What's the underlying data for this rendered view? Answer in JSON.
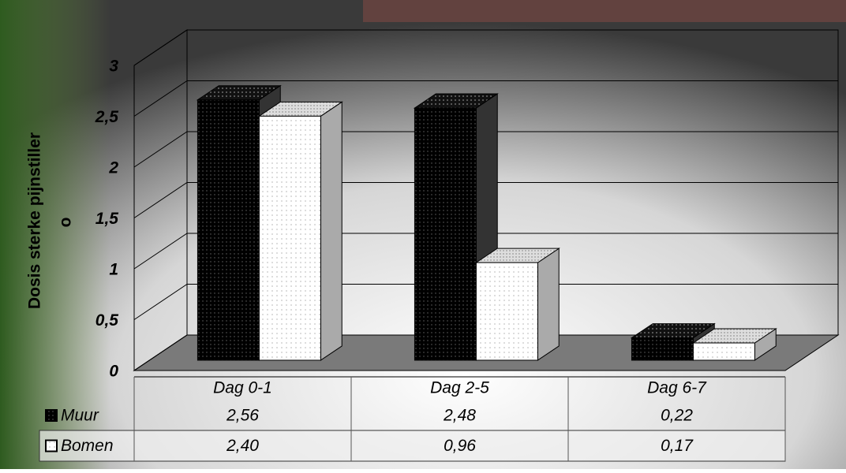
{
  "chart_data": {
    "type": "bar3d",
    "y_label": [
      "Dosis sterke pijnstiller",
      "o"
    ],
    "categories": [
      "Dag 0-1",
      "Dag 2-5",
      "Dag 6-7"
    ],
    "series": [
      {
        "name": "Muur",
        "color": "#000000",
        "values": [
          2.56,
          2.48,
          0.22
        ],
        "value_labels": [
          "2,56",
          "2,48",
          "0,22"
        ]
      },
      {
        "name": "Bomen",
        "color": "#ffffff",
        "values": [
          2.4,
          0.96,
          0.17
        ],
        "value_labels": [
          "2,40",
          "0,96",
          "0,17"
        ]
      }
    ],
    "ylim": [
      0,
      3
    ],
    "yticks": [
      0,
      {
        "value": 0.5,
        "label": "0,5"
      },
      1,
      {
        "value": 1.5,
        "label": "1,5"
      },
      2,
      {
        "value": 2.5,
        "label": "2,5"
      },
      3
    ],
    "grid": true
  }
}
